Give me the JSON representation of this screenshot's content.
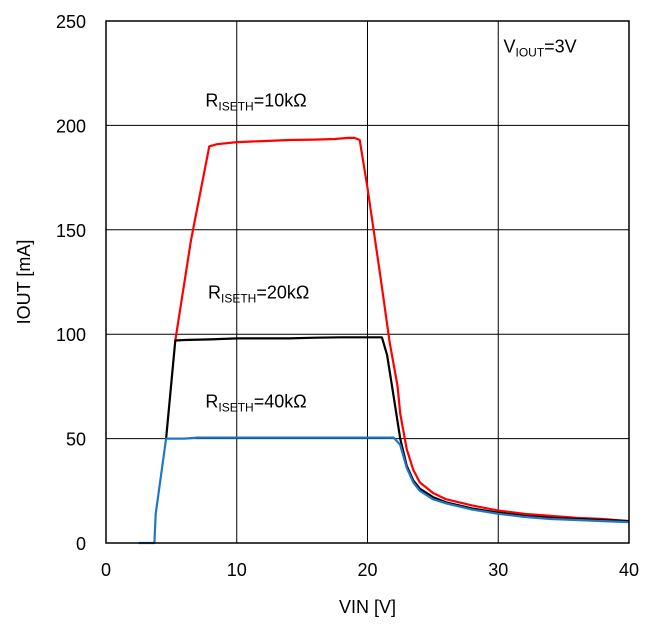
{
  "chart_data": {
    "type": "line",
    "xlabel": "VIN [V]",
    "ylabel": "IOUT [mA]",
    "xlim": [
      0,
      40
    ],
    "ylim": [
      0,
      250
    ],
    "xticks": [
      "0",
      "10",
      "20",
      "30",
      "40"
    ],
    "yticks": [
      "0",
      "50",
      "100",
      "150",
      "200",
      "250"
    ],
    "grid": true,
    "annotations": [
      {
        "id": "viout",
        "main": "V",
        "sub": "IOUT",
        "suffix": "=3V",
        "x": 30.4,
        "y": 235
      },
      {
        "id": "r10k",
        "main": "R",
        "sub": "ISETH",
        "suffix": "=10kΩ",
        "x": 7.6,
        "y": 209
      },
      {
        "id": "r20k",
        "main": "R",
        "sub": "ISETH",
        "suffix": "=20kΩ",
        "x": 7.8,
        "y": 117
      },
      {
        "id": "r40k",
        "main": "R",
        "sub": "ISETH",
        "suffix": "=40kΩ",
        "x": 7.6,
        "y": 65
      }
    ],
    "series": [
      {
        "color": "#ff0000",
        "x": [
          5.3,
          6.5,
          7.9,
          8.5,
          10,
          12,
          14,
          16,
          17.5,
          18.5,
          19,
          19.4,
          20,
          21,
          21.7,
          22.3,
          22.5,
          23,
          23.5,
          24,
          25,
          26,
          28,
          30,
          32,
          34,
          36,
          38,
          40
        ],
        "y": [
          97,
          145,
          190,
          191,
          192,
          192.5,
          193,
          193.2,
          193.5,
          194,
          194,
          193,
          170,
          127,
          96,
          75,
          62,
          45,
          35,
          29,
          24,
          21,
          18,
          15.5,
          14,
          13,
          12,
          11.5,
          10.5
        ]
      },
      {
        "color": "#000000",
        "x": [
          4.6,
          5.3,
          6,
          8,
          10,
          12,
          14,
          16,
          18,
          20,
          21.1,
          21.5,
          22,
          22.5,
          23,
          23.5,
          24,
          25,
          26,
          28,
          30,
          32,
          34,
          36,
          38,
          40
        ],
        "y": [
          50,
          97,
          97.2,
          97.5,
          98,
          98,
          98,
          98.3,
          98.5,
          98.5,
          98.5,
          90,
          70,
          50,
          37,
          30,
          26,
          22,
          19.5,
          16.5,
          14.5,
          13,
          12,
          11.5,
          11,
          10.5
        ]
      },
      {
        "color": "#1f77c4",
        "x": [
          2.5,
          3.7,
          3.8,
          4.6,
          6,
          7,
          10,
          14,
          18,
          22,
          22.5,
          23,
          23.5,
          24,
          25,
          26,
          28,
          30,
          32,
          34,
          36,
          38,
          40
        ],
        "y": [
          0,
          0,
          14,
          50,
          50,
          50.5,
          50.5,
          50.5,
          50.5,
          50.5,
          47,
          36,
          29,
          25,
          21,
          19,
          16,
          14,
          12.5,
          11.5,
          11,
          10.5,
          10
        ]
      }
    ]
  }
}
